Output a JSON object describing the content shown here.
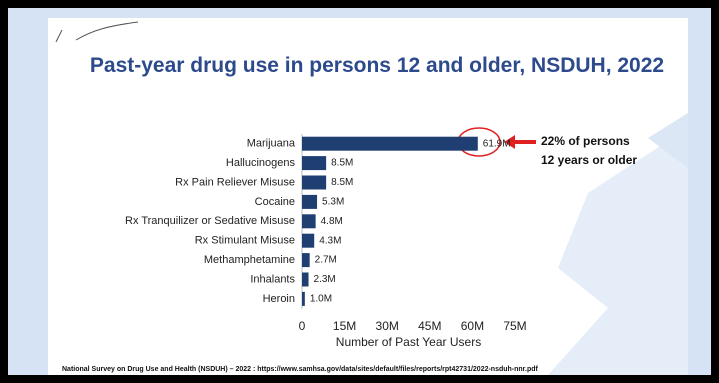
{
  "chart_data": {
    "type": "bar",
    "orientation": "horizontal",
    "title": "Past-year drug use in persons 12 and older, NSDUH, 2022",
    "categories": [
      "Marijuana",
      "Hallucinogens",
      "Rx Pain Reliever Misuse",
      "Cocaine",
      "Rx Tranquilizer or Sedative Misuse",
      "Rx Stimulant Misuse",
      "Methamphetamine",
      "Inhalants",
      "Heroin"
    ],
    "values": [
      61.9,
      8.5,
      8.5,
      5.3,
      4.8,
      4.3,
      2.7,
      2.3,
      1.0
    ],
    "value_labels": [
      "61.9M",
      "8.5M",
      "8.5M",
      "5.3M",
      "4.8M",
      "4.3M",
      "2.7M",
      "2.3M",
      "1.0M"
    ],
    "color": "#1f3f73",
    "xlim": [
      0,
      75
    ],
    "xticks": [
      0,
      {
        "value": 15,
        "label": "15M"
      },
      {
        "value": 30,
        "label": "30M"
      },
      {
        "value": 45,
        "label": "45M"
      },
      {
        "value": 60,
        "label": "60M"
      },
      {
        "value": 75,
        "label": "75M"
      }
    ],
    "x_label": "Number of Past Year Users",
    "annotation": "22% of persons 12 years or older"
  },
  "footer": "National Survey on Drug Use and Health (NSDUH) – 2022 : https://www.samhsa.gov/data/sites/default/files/reports/rpt42731/2022-nsduh-nnr.pdf"
}
